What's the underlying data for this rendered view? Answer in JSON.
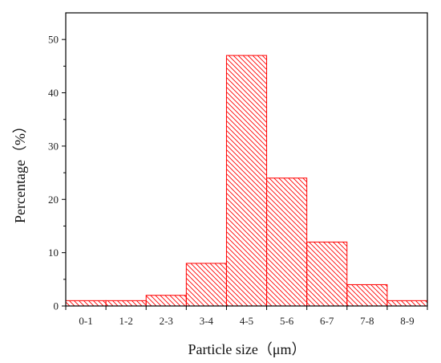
{
  "chart_data": {
    "type": "bar",
    "categories": [
      "0-1",
      "1-2",
      "2-3",
      "3-4",
      "4-5",
      "5-6",
      "6-7",
      "7-8",
      "8-9"
    ],
    "values": [
      1,
      1,
      2,
      8,
      47,
      24,
      12,
      4,
      1
    ],
    "title": "",
    "xlabel": "Particle size（μm）",
    "ylabel": "Percentage（%）",
    "ylim": [
      0,
      55
    ],
    "yticks": [
      0,
      10,
      20,
      30,
      40,
      50
    ],
    "grid": false,
    "legend": "none",
    "bar_fill": "hatched",
    "colors": {
      "bar": "#ff0000",
      "axis": "#000000"
    }
  }
}
